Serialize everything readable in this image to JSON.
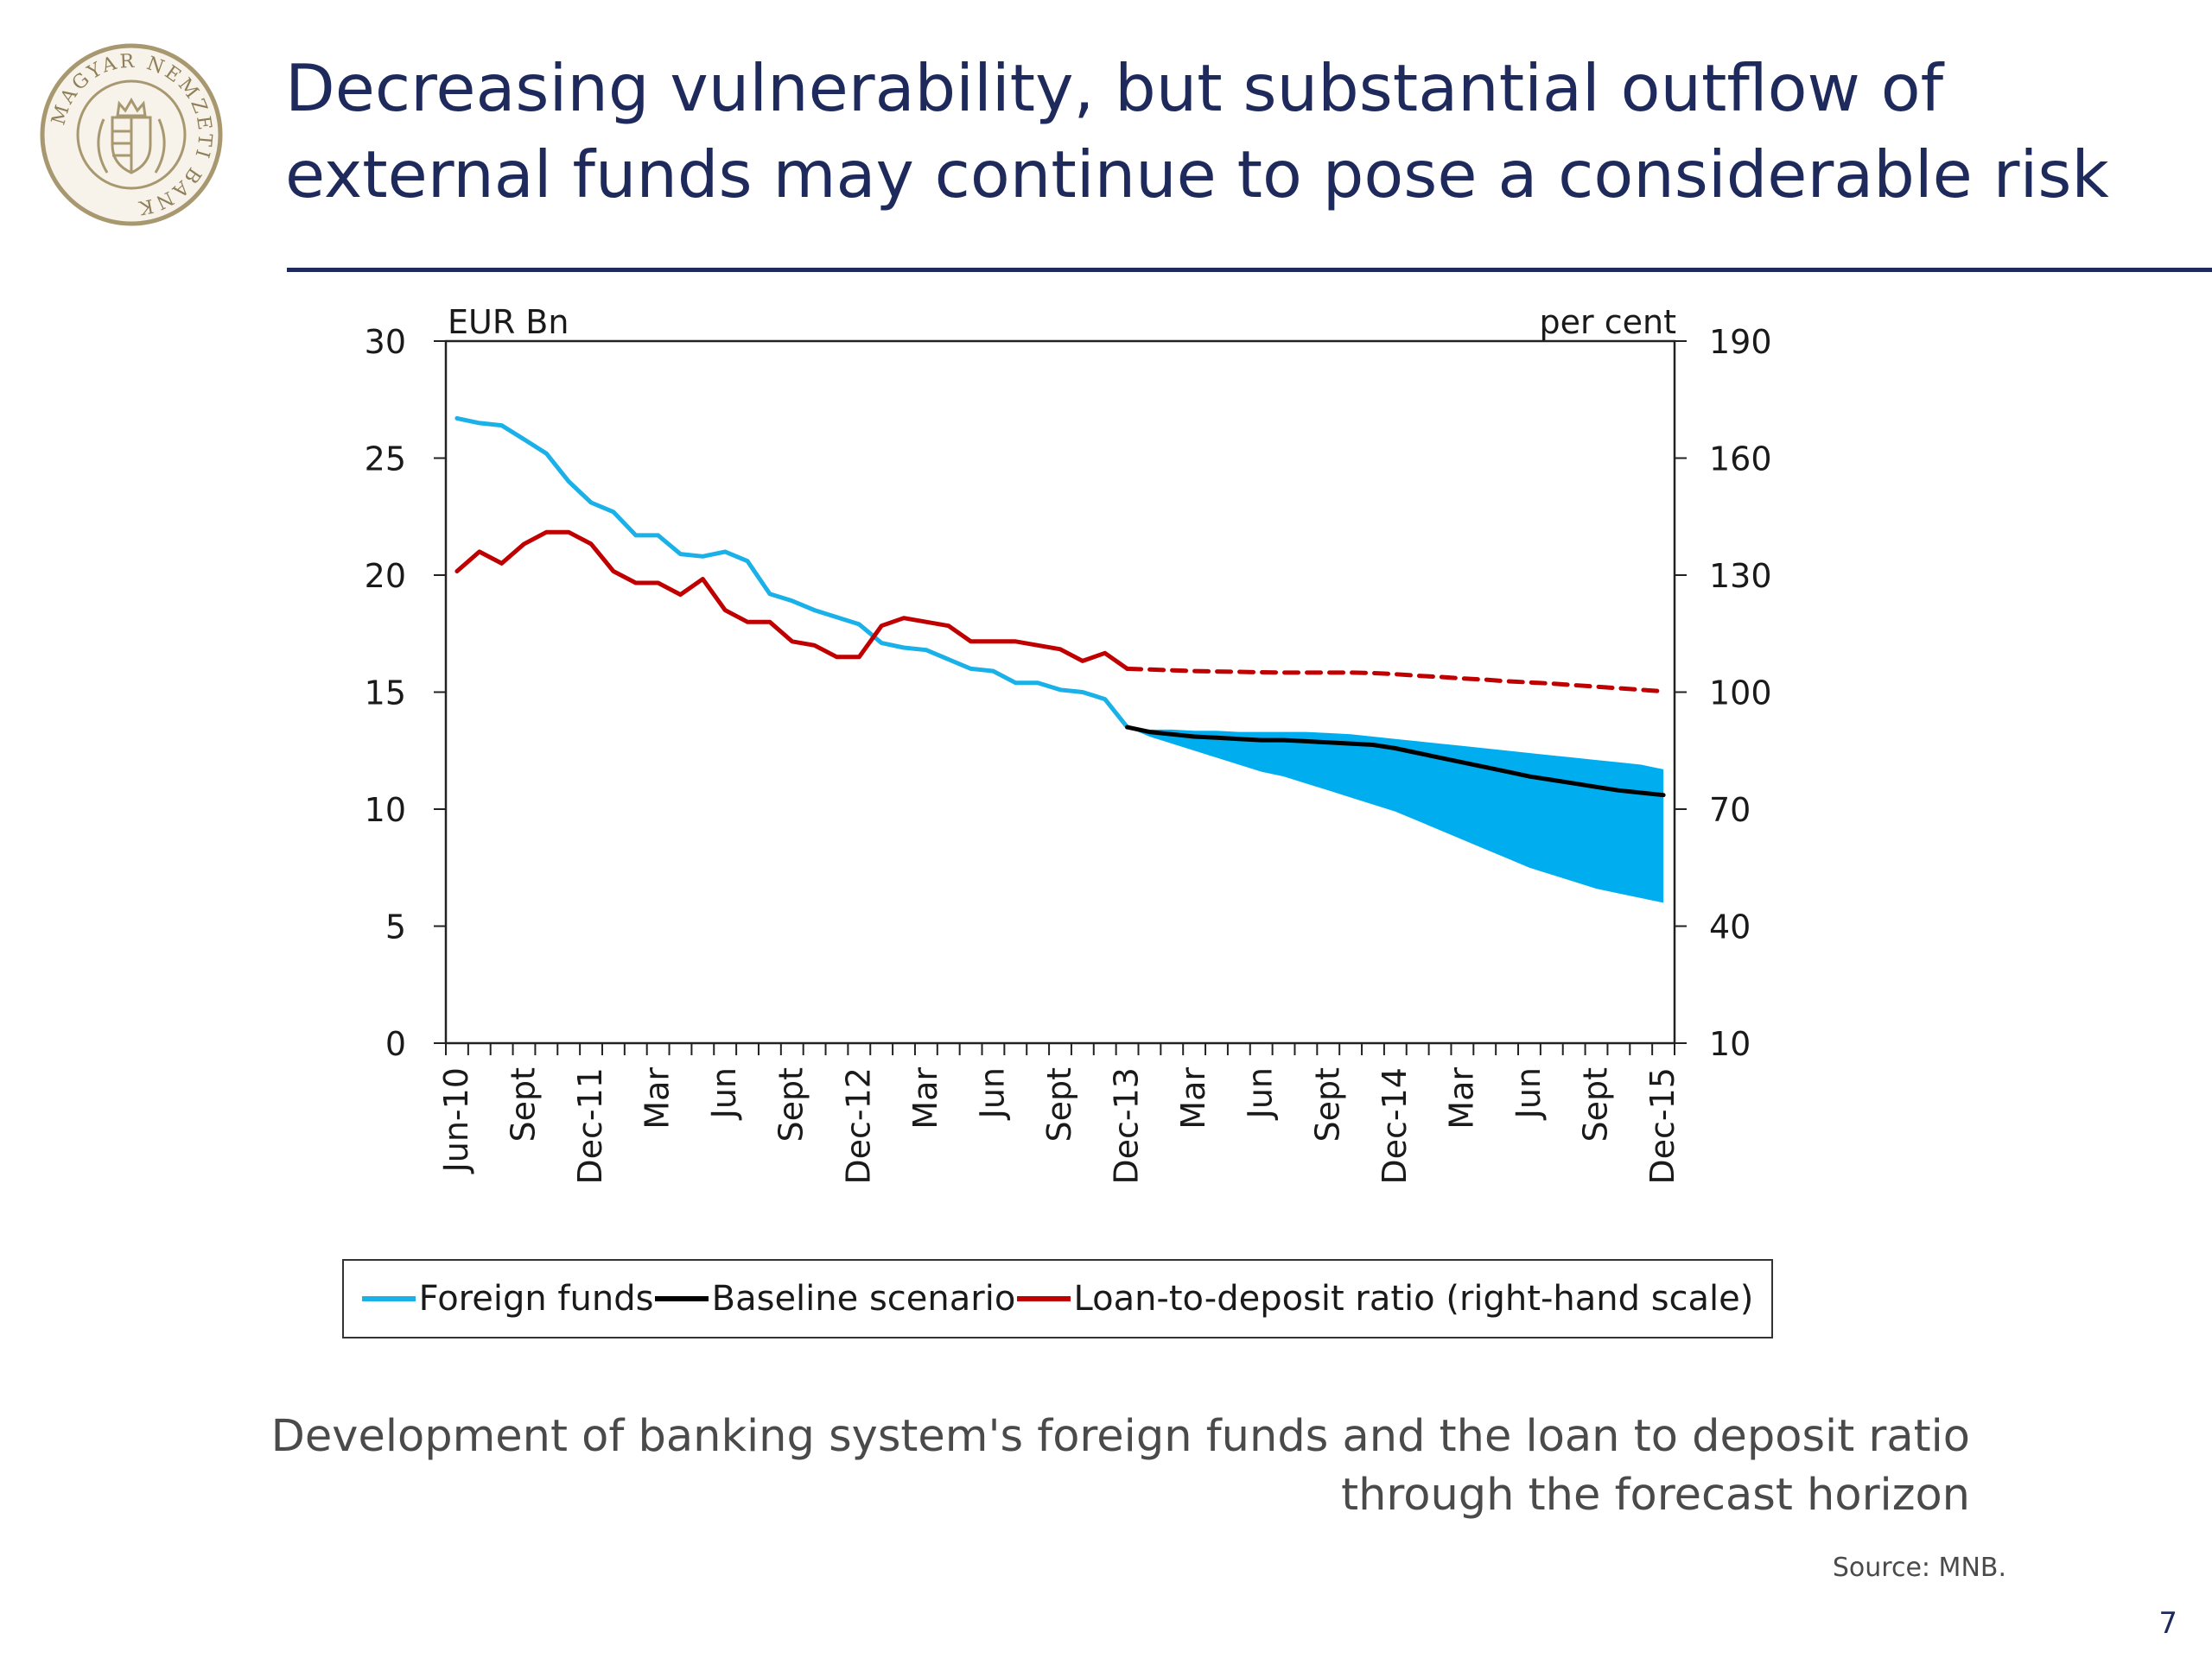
{
  "slide": {
    "title": "Decreasing vulnerability, but substantial outflow of external funds may continue to pose a considerable risk",
    "logo_text": "MAGYAR NEMZETI BANK",
    "caption": "Development of banking system's foreign funds and the loan to deposit ratio through the forecast horizon",
    "source": "Source: MNB.",
    "page_number": "7",
    "colors": {
      "title": "#1f2a5c",
      "rule": "#1f2a5c",
      "logo": "#a89870"
    }
  },
  "chart_data": {
    "type": "line",
    "left_axis_unit": "EUR Bn",
    "right_axis_unit": "per cent",
    "left_ylim": [
      0,
      30
    ],
    "left_ticks": [
      "0",
      "5",
      "10",
      "15",
      "20",
      "25",
      "30"
    ],
    "right_ylim": [
      10,
      190
    ],
    "right_ticks": [
      "10",
      "40",
      "70",
      "100",
      "130",
      "160",
      "190"
    ],
    "x_tick_labels": [
      "Jun-10",
      "Sept",
      "Dec-11",
      "Mar",
      "Jun",
      "Sept",
      "Dec-12",
      "Mar",
      "Jun",
      "Sept",
      "Dec-13",
      "Mar",
      "Jun",
      "Sept",
      "Dec-14",
      "Mar",
      "Jun",
      "Sept",
      "Dec-15"
    ],
    "x_tick_label_months": [
      1,
      4,
      7,
      10,
      13,
      16,
      19,
      22,
      25,
      28,
      31,
      34,
      37,
      40,
      43,
      46,
      49,
      52,
      55
    ],
    "months": 55,
    "grid": false,
    "legend_position": "bottom",
    "legend": [
      "Foreign funds",
      "Baseline scenario",
      "Loan-to-deposit ratio (right-hand scale)"
    ],
    "series": [
      {
        "name": "Foreign funds",
        "axis": "left",
        "color": "#1ab0e8",
        "start_month": 1,
        "values": [
          26.7,
          26.5,
          26.4,
          25.8,
          25.2,
          24.0,
          23.1,
          22.7,
          21.7,
          21.7,
          20.9,
          20.8,
          21.0,
          20.6,
          19.2,
          18.9,
          18.5,
          18.2,
          17.9,
          17.1,
          16.9,
          16.8,
          16.4,
          16.0,
          15.9,
          15.4,
          15.4,
          15.1,
          15.0,
          14.7,
          13.5
        ]
      },
      {
        "name": "Baseline scenario",
        "axis": "left",
        "color": "#000000",
        "start_month": 31,
        "values": [
          13.5,
          13.3,
          13.2,
          13.1,
          13.05,
          13.0,
          12.95,
          12.95,
          12.9,
          12.85,
          12.8,
          12.75,
          12.6,
          12.4,
          12.2,
          12.0,
          11.8,
          11.6,
          11.4,
          11.25,
          11.1,
          10.95,
          10.8,
          10.7,
          10.6
        ]
      },
      {
        "name": "Loan-to-deposit ratio (right-hand scale)",
        "axis": "right",
        "color": "#c00000",
        "start_month": 1,
        "values": [
          131,
          136,
          133,
          138,
          141,
          141,
          138,
          131,
          128,
          128,
          125,
          129,
          121,
          118,
          118,
          113,
          112,
          109,
          109,
          117,
          119,
          118,
          117,
          113,
          113,
          113,
          112,
          111,
          108,
          110,
          106
        ]
      },
      {
        "name": "Loan-to-deposit ratio forecast",
        "axis": "right",
        "color": "#c00000",
        "dashed": true,
        "start_month": 31,
        "values": [
          106,
          105.8,
          105.6,
          105.4,
          105.3,
          105.2,
          105.1,
          105.0,
          105.0,
          105.0,
          105.0,
          104.9,
          104.6,
          104.2,
          103.9,
          103.5,
          103.2,
          102.8,
          102.5,
          102.2,
          101.8,
          101.4,
          101.0,
          100.6,
          100.2
        ]
      }
    ],
    "band": {
      "axis": "left",
      "color": "#00aeef",
      "start_month": 31,
      "upper": [
        13.5,
        13.4,
        13.4,
        13.35,
        13.35,
        13.3,
        13.3,
        13.3,
        13.3,
        13.25,
        13.2,
        13.1,
        13.0,
        12.9,
        12.8,
        12.7,
        12.6,
        12.5,
        12.4,
        12.3,
        12.2,
        12.1,
        12.0,
        11.9,
        11.7
      ],
      "lower": [
        13.5,
        13.1,
        12.8,
        12.5,
        12.2,
        11.9,
        11.6,
        11.4,
        11.1,
        10.8,
        10.5,
        10.2,
        9.9,
        9.5,
        9.1,
        8.7,
        8.3,
        7.9,
        7.5,
        7.2,
        6.9,
        6.6,
        6.4,
        6.2,
        6.0
      ]
    }
  }
}
